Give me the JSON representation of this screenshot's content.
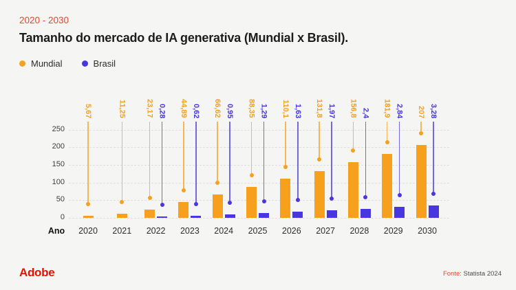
{
  "page": {
    "subtitle": "2020 - 2030",
    "title": "Tamanho do mercado de IA generativa (Mundial x Brasil).",
    "background": "#f5f5f4",
    "accent_red": "#e8452f"
  },
  "legend": [
    {
      "label": "Mundial",
      "color": "#f7a01e",
      "icon": "circle-dot"
    },
    {
      "label": "Brasil",
      "color": "#4936df",
      "icon": "circle-dot"
    }
  ],
  "chart_data": {
    "type": "bar",
    "title": "Tamanho do mercado de IA generativa (Mundial x Brasil).",
    "subtitle": "2020 - 2030",
    "categories": [
      "2020",
      "2021",
      "2022",
      "2023",
      "2024",
      "2025",
      "2026",
      "2027",
      "2028",
      "2029",
      "2030"
    ],
    "xlabel": "Ano",
    "ylabel": "",
    "ylim": [
      0,
      250
    ],
    "yticks": [
      0,
      50,
      100,
      150,
      200,
      250
    ],
    "grid": "horizontal-dashed",
    "legend_position": "top-left",
    "series": [
      {
        "name": "Mundial",
        "color": "#f7a01e",
        "values": [
          5.67,
          11.25,
          23.17,
          44.89,
          66.62,
          88.35,
          110.1,
          131.8,
          156.8,
          181.9,
          207
        ],
        "labels": [
          "5,67",
          "11,25",
          "23,17",
          "44,89",
          "66,62",
          "88,35",
          "110,1",
          "131,8",
          "156,8",
          "181,9",
          "207"
        ]
      },
      {
        "name": "Brasil",
        "color": "#4936df",
        "values": [
          null,
          null,
          0.28,
          0.62,
          0.95,
          1.29,
          1.63,
          1.97,
          2.4,
          2.84,
          3.28
        ],
        "labels": [
          null,
          null,
          "0,28",
          "0,62",
          "0,95",
          "1,29",
          "1,63",
          "1,97",
          "2,4",
          "2,84",
          "3,28"
        ]
      }
    ]
  },
  "footer": {
    "logo": "Adobe",
    "source_prefix": "Fonte:",
    "source": "Statista 2024"
  }
}
